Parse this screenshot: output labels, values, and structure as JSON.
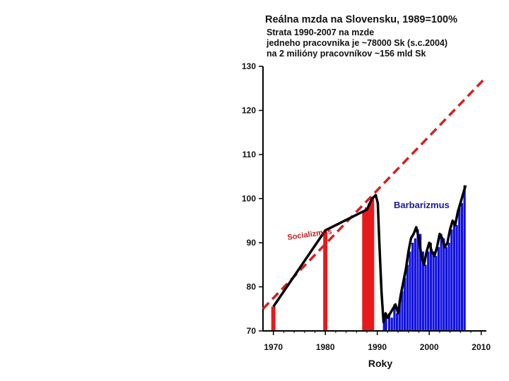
{
  "chart_data": {
    "type": "bar",
    "title": "Reálna mzda na Slovensku, 1989=100%",
    "subtitle_lines": [
      "Strata 1990-2007 na mzde",
      "jedneho pracovnika je ~78000 Sk (s.c.2004)",
      "na 2 milióny pracovníkov ~156 mld Sk"
    ],
    "xlabel": "Roky",
    "ylabel": "",
    "xlim": [
      1968,
      2011
    ],
    "ylim": [
      70,
      130
    ],
    "xticks": [
      1970,
      1980,
      1990,
      2000,
      2010
    ],
    "yticks": [
      70,
      80,
      90,
      100,
      110,
      120,
      130
    ],
    "annotations": {
      "blue_region": "Barbarizmus",
      "red_region": "Socializmus"
    },
    "colors": {
      "red": "#e8191a",
      "blue": "#1010e0",
      "line": "#000000",
      "trend": "#d42020"
    },
    "red_bars": [
      {
        "x": 1970,
        "value": 75.5
      },
      {
        "x": 1980,
        "value": 92.5
      },
      {
        "x": 1987.5,
        "value": 97
      },
      {
        "x": 1988,
        "value": 98
      },
      {
        "x": 1988.6,
        "value": 99
      },
      {
        "x": 1989,
        "value": 100
      }
    ],
    "blue_bars": [
      {
        "x": 1991.3,
        "value": 72
      },
      {
        "x": 1991.7,
        "value": 74
      },
      {
        "x": 1992.3,
        "value": 74
      },
      {
        "x": 1992.8,
        "value": 73
      },
      {
        "x": 1993.3,
        "value": 76
      },
      {
        "x": 1993.8,
        "value": 74
      },
      {
        "x": 1994.3,
        "value": 77
      },
      {
        "x": 1994.8,
        "value": 79
      },
      {
        "x": 1995.3,
        "value": 82
      },
      {
        "x": 1995.8,
        "value": 85
      },
      {
        "x": 1996.3,
        "value": 88
      },
      {
        "x": 1996.8,
        "value": 90
      },
      {
        "x": 1997.3,
        "value": 91
      },
      {
        "x": 1997.8,
        "value": 93
      },
      {
        "x": 1998.3,
        "value": 92
      },
      {
        "x": 1998.8,
        "value": 88
      },
      {
        "x": 1999.3,
        "value": 85
      },
      {
        "x": 1999.8,
        "value": 88
      },
      {
        "x": 2000.3,
        "value": 90
      },
      {
        "x": 2000.8,
        "value": 88
      },
      {
        "x": 2001.3,
        "value": 87
      },
      {
        "x": 2001.8,
        "value": 89
      },
      {
        "x": 2002.3,
        "value": 92
      },
      {
        "x": 2002.8,
        "value": 91
      },
      {
        "x": 2003.3,
        "value": 89
      },
      {
        "x": 2003.8,
        "value": 90
      },
      {
        "x": 2004.3,
        "value": 93
      },
      {
        "x": 2004.8,
        "value": 95
      },
      {
        "x": 2005.3,
        "value": 94
      },
      {
        "x": 2005.8,
        "value": 98
      },
      {
        "x": 2006.3,
        "value": 99
      },
      {
        "x": 2006.8,
        "value": 103
      }
    ],
    "series": [
      {
        "name": "Reálna mzda",
        "x": [
          1970,
          1980,
          1988,
          1989,
          1989.7,
          1990.1,
          1990.4,
          1990.8,
          1991.2,
          1991.6,
          1992,
          1992.5,
          1993,
          1993.5,
          1994,
          1994.5,
          1995,
          1995.5,
          1996,
          1996.5,
          1997,
          1997.5,
          1998,
          1998.5,
          1999,
          1999.5,
          2000,
          2000.5,
          2001,
          2001.5,
          2002,
          2002.5,
          2003,
          2003.5,
          2004,
          2004.5,
          2005,
          2005.5,
          2006,
          2006.5,
          2007
        ],
        "values": [
          75.5,
          92.8,
          97.5,
          100,
          100.8,
          99,
          90,
          79,
          72,
          74,
          73,
          74,
          75,
          76,
          74,
          78,
          81,
          84,
          88,
          91,
          92,
          93.5,
          91,
          87,
          85,
          88,
          90,
          88,
          87,
          89,
          92,
          91,
          89,
          90,
          93,
          95,
          94,
          97,
          99,
          101,
          103
        ]
      },
      {
        "name": "Trend",
        "x": [
          1968,
          2010.5
        ],
        "values": [
          75,
          127
        ]
      }
    ]
  }
}
